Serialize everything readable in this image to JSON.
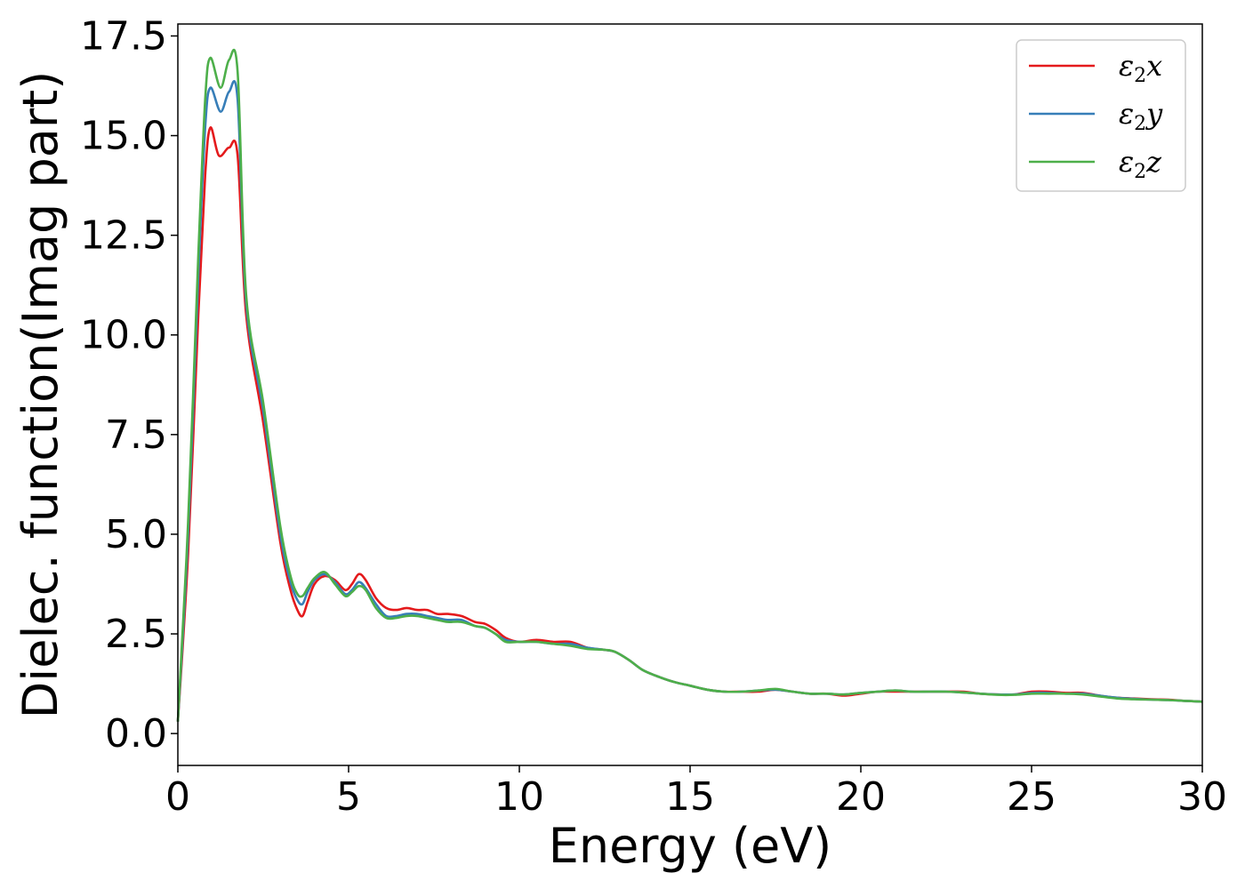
{
  "chart_data": {
    "type": "line",
    "title": "",
    "xlabel": "Energy (eV)",
    "ylabel": "Dielec. function(Imag part)",
    "xlim": [
      0,
      30
    ],
    "ylim": [
      -0.8,
      17.8
    ],
    "xticks": [
      0,
      5,
      10,
      15,
      20,
      25,
      30
    ],
    "xtick_labels": [
      "0",
      "5",
      "10",
      "15",
      "20",
      "25",
      "30"
    ],
    "yticks": [
      0.0,
      2.5,
      5.0,
      7.5,
      10.0,
      12.5,
      15.0,
      17.5
    ],
    "ytick_labels": [
      "0.0",
      "2.5",
      "5.0",
      "7.5",
      "10.0",
      "12.5",
      "15.0",
      "17.5"
    ],
    "grid": false,
    "legend_position": "top-right",
    "series": [
      {
        "name": "ε2x",
        "legend_base": "ε",
        "legend_sub": "2",
        "legend_tail": "x",
        "color": "#e41a1c",
        "x": [
          0,
          0.3,
          0.6,
          0.8,
          0.95,
          1.2,
          1.5,
          1.75,
          2.0,
          2.5,
          3.0,
          3.3,
          3.5,
          3.65,
          3.8,
          4.0,
          4.3,
          4.6,
          4.9,
          5.1,
          5.3,
          5.5,
          5.8,
          6.1,
          6.4,
          6.7,
          7.0,
          7.3,
          7.6,
          7.9,
          8.3,
          8.7,
          9.0,
          9.3,
          9.6,
          10.0,
          10.5,
          11.0,
          11.5,
          12.0,
          12.5,
          12.8,
          13.2,
          13.6,
          14.0,
          14.5,
          15.0,
          15.5,
          16.0,
          16.5,
          17.0,
          17.5,
          18.0,
          18.5,
          19.0,
          19.5,
          20.0,
          20.5,
          21.0,
          21.5,
          22.0,
          22.5,
          23.0,
          23.5,
          24.0,
          24.5,
          25.0,
          25.5,
          26.0,
          26.5,
          27.0,
          27.5,
          28.0,
          28.5,
          29.0,
          29.5,
          30.0
        ],
        "y": [
          0.3,
          4.5,
          10.5,
          14.0,
          15.2,
          14.5,
          14.7,
          14.5,
          10.5,
          7.8,
          4.8,
          3.6,
          3.1,
          2.95,
          3.3,
          3.75,
          3.95,
          3.85,
          3.6,
          3.75,
          4.0,
          3.85,
          3.4,
          3.15,
          3.1,
          3.15,
          3.1,
          3.1,
          3.0,
          3.0,
          2.95,
          2.8,
          2.75,
          2.6,
          2.4,
          2.3,
          2.35,
          2.3,
          2.3,
          2.15,
          2.1,
          2.05,
          1.85,
          1.6,
          1.45,
          1.3,
          1.2,
          1.1,
          1.05,
          1.05,
          1.05,
          1.1,
          1.05,
          1.0,
          1.0,
          0.95,
          1.0,
          1.05,
          1.05,
          1.05,
          1.05,
          1.05,
          1.05,
          1.0,
          0.98,
          0.98,
          1.05,
          1.05,
          1.02,
          1.02,
          0.95,
          0.9,
          0.88,
          0.86,
          0.85,
          0.82,
          0.8
        ]
      },
      {
        "name": "ε2y",
        "legend_base": "ε",
        "legend_sub": "2",
        "legend_tail": "y",
        "color": "#377eb8",
        "x": [
          0,
          0.3,
          0.6,
          0.8,
          0.95,
          1.25,
          1.5,
          1.75,
          2.0,
          2.5,
          3.0,
          3.3,
          3.5,
          3.65,
          3.8,
          4.0,
          4.3,
          4.6,
          4.9,
          5.1,
          5.3,
          5.5,
          5.8,
          6.1,
          6.4,
          6.7,
          7.0,
          7.3,
          7.6,
          7.9,
          8.3,
          8.7,
          9.0,
          9.3,
          9.6,
          10.0,
          10.5,
          11.0,
          11.5,
          12.0,
          12.5,
          12.8,
          13.2,
          13.6,
          14.0,
          14.5,
          15.0,
          15.5,
          16.0,
          16.5,
          17.0,
          17.5,
          18.0,
          18.5,
          19.0,
          19.5,
          20.0,
          20.5,
          21.0,
          21.5,
          22.0,
          22.5,
          23.0,
          23.5,
          24.0,
          24.5,
          25.0,
          25.5,
          26.0,
          26.5,
          27.0,
          27.5,
          28.0,
          28.5,
          29.0,
          29.5,
          30.0
        ],
        "y": [
          0.3,
          5.0,
          11.5,
          15.2,
          16.2,
          15.6,
          16.1,
          15.9,
          10.8,
          8.1,
          5.0,
          3.8,
          3.35,
          3.25,
          3.55,
          3.85,
          4.0,
          3.8,
          3.5,
          3.6,
          3.8,
          3.65,
          3.25,
          2.95,
          2.95,
          3.0,
          3.0,
          2.95,
          2.9,
          2.85,
          2.85,
          2.7,
          2.65,
          2.5,
          2.35,
          2.3,
          2.3,
          2.25,
          2.25,
          2.15,
          2.1,
          2.05,
          1.85,
          1.6,
          1.45,
          1.3,
          1.2,
          1.1,
          1.05,
          1.05,
          1.08,
          1.1,
          1.05,
          1.0,
          1.0,
          0.98,
          1.02,
          1.05,
          1.08,
          1.05,
          1.05,
          1.05,
          1.03,
          1.0,
          0.98,
          0.98,
          1.02,
          1.02,
          1.0,
          1.0,
          0.95,
          0.9,
          0.87,
          0.85,
          0.84,
          0.82,
          0.8
        ]
      },
      {
        "name": "ε2z",
        "legend_base": "ε",
        "legend_sub": "2",
        "legend_tail": "z",
        "color": "#4daf4a",
        "x": [
          0,
          0.3,
          0.6,
          0.8,
          0.95,
          1.25,
          1.5,
          1.75,
          2.0,
          2.5,
          3.0,
          3.3,
          3.5,
          3.65,
          3.8,
          4.0,
          4.3,
          4.6,
          4.9,
          5.1,
          5.3,
          5.5,
          5.8,
          6.1,
          6.4,
          6.7,
          7.0,
          7.3,
          7.6,
          7.9,
          8.3,
          8.7,
          9.0,
          9.3,
          9.6,
          10.0,
          10.5,
          11.0,
          11.5,
          12.0,
          12.5,
          12.8,
          13.2,
          13.6,
          14.0,
          14.5,
          15.0,
          15.5,
          16.0,
          16.5,
          17.0,
          17.5,
          18.0,
          18.5,
          19.0,
          19.5,
          20.0,
          20.5,
          21.0,
          21.5,
          22.0,
          22.5,
          23.0,
          23.5,
          24.0,
          24.5,
          25.0,
          25.5,
          26.0,
          26.5,
          27.0,
          27.5,
          28.0,
          28.5,
          29.0,
          29.5,
          30.0
        ],
        "y": [
          0.3,
          5.3,
          12.0,
          15.9,
          16.95,
          16.2,
          16.9,
          16.6,
          11.0,
          8.3,
          5.2,
          3.95,
          3.5,
          3.45,
          3.65,
          3.9,
          4.05,
          3.75,
          3.45,
          3.55,
          3.7,
          3.6,
          3.15,
          2.9,
          2.9,
          2.95,
          2.95,
          2.9,
          2.85,
          2.8,
          2.8,
          2.7,
          2.65,
          2.5,
          2.3,
          2.3,
          2.3,
          2.25,
          2.2,
          2.12,
          2.1,
          2.05,
          1.85,
          1.6,
          1.45,
          1.3,
          1.2,
          1.1,
          1.05,
          1.05,
          1.08,
          1.12,
          1.05,
          1.0,
          1.0,
          0.98,
          1.02,
          1.05,
          1.08,
          1.05,
          1.05,
          1.05,
          1.03,
          1.0,
          0.97,
          0.97,
          1.0,
          1.0,
          1.0,
          0.98,
          0.93,
          0.88,
          0.86,
          0.85,
          0.84,
          0.82,
          0.8
        ]
      }
    ]
  }
}
